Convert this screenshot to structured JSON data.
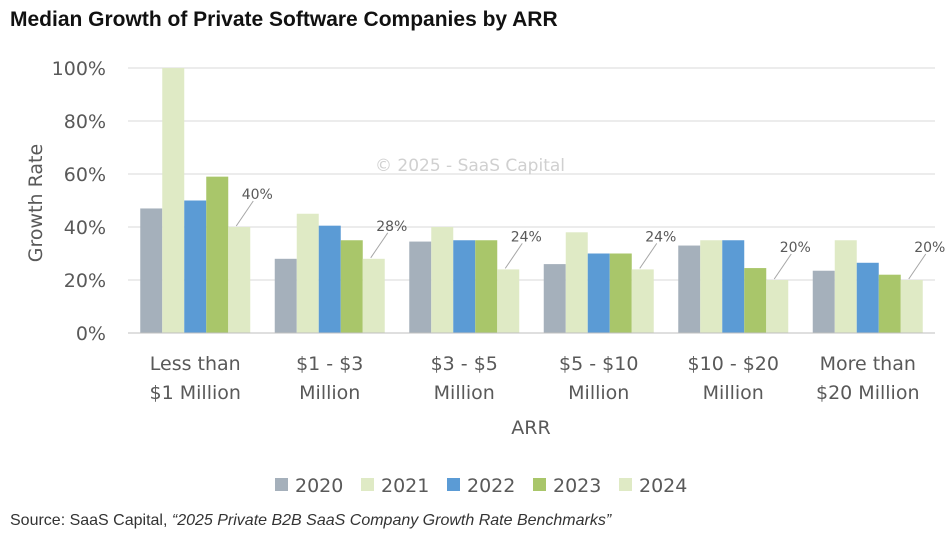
{
  "header": {
    "title": "Median Growth of Private Software Companies by ARR"
  },
  "watermark": "© 2025 - SaaS Capital",
  "footer": {
    "source_prefix": "Source: SaaS Capital, ",
    "source_report": "“2025 Private B2B SaaS Company Growth Rate Benchmarks”"
  },
  "chart_data": {
    "type": "bar",
    "title": "Median Growth of Private Software Companies by ARR",
    "xlabel": "ARR",
    "ylabel": "Growth Rate",
    "ylim": [
      0,
      100
    ],
    "y_ticks": [
      0,
      20,
      40,
      60,
      80,
      100
    ],
    "y_tick_labels": [
      "0%",
      "20%",
      "40%",
      "60%",
      "80%",
      "100%"
    ],
    "grid": true,
    "legend_position": "bottom",
    "categories": [
      [
        "Less than",
        "$1 Million"
      ],
      [
        "$1 - $3",
        "Million"
      ],
      [
        "$3 - $5",
        "Million"
      ],
      [
        "$5 - $10",
        "Million"
      ],
      [
        "$10 - $20",
        "Million"
      ],
      [
        "More than",
        "$20 Million"
      ]
    ],
    "series": [
      {
        "name": "2020",
        "color": "#a5b0bb",
        "values": [
          47,
          28,
          34.5,
          26,
          33,
          23.5
        ]
      },
      {
        "name": "2021",
        "color": "#dfeac5",
        "values": [
          100,
          45,
          40,
          38,
          35,
          35
        ]
      },
      {
        "name": "2022",
        "color": "#5b9bd5",
        "values": [
          50,
          40.5,
          35,
          30,
          35,
          26.5
        ]
      },
      {
        "name": "2023",
        "color": "#a9c66a",
        "values": [
          59,
          35,
          35,
          30,
          24.5,
          22
        ]
      },
      {
        "name": "2024",
        "color": "#dfeac5",
        "values": [
          40,
          28,
          24,
          24,
          20,
          20
        ]
      }
    ],
    "annotations": [
      "40%",
      "28%",
      "24%",
      "24%",
      "20%",
      "20%"
    ]
  }
}
